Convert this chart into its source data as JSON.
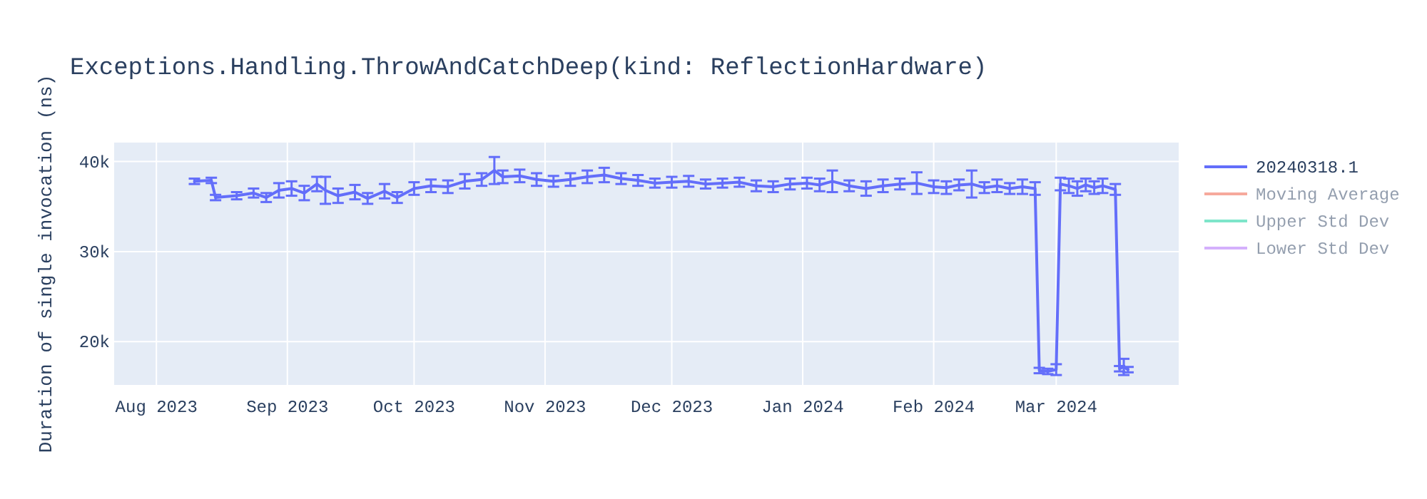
{
  "chart_data": {
    "type": "line",
    "title": "Exceptions.Handling.ThrowAndCatchDeep(kind: ReflectionHardware)",
    "ylabel": "Duration of single invocation (ns)",
    "x": [
      "2023-08-10",
      "2023-08-14",
      "2023-08-15",
      "2023-08-20",
      "2023-08-24",
      "2023-08-27",
      "2023-08-30",
      "2023-09-02",
      "2023-09-05",
      "2023-09-08",
      "2023-09-10",
      "2023-09-13",
      "2023-09-17",
      "2023-09-20",
      "2023-09-24",
      "2023-09-27",
      "2023-10-01",
      "2023-10-05",
      "2023-10-09",
      "2023-10-13",
      "2023-10-17",
      "2023-10-20",
      "2023-10-22",
      "2023-10-26",
      "2023-10-30",
      "2023-11-03",
      "2023-11-07",
      "2023-11-11",
      "2023-11-15",
      "2023-11-19",
      "2023-11-23",
      "2023-11-27",
      "2023-12-01",
      "2023-12-05",
      "2023-12-09",
      "2023-12-13",
      "2023-12-17",
      "2023-12-21",
      "2023-12-25",
      "2023-12-29",
      "2024-01-02",
      "2024-01-05",
      "2024-01-08",
      "2024-01-12",
      "2024-01-16",
      "2024-01-20",
      "2024-01-24",
      "2024-01-28",
      "2024-02-01",
      "2024-02-04",
      "2024-02-07",
      "2024-02-10",
      "2024-02-13",
      "2024-02-16",
      "2024-02-19",
      "2024-02-22",
      "2024-02-25",
      "2024-02-26",
      "2024-02-28",
      "2024-03-01",
      "2024-03-02",
      "2024-03-04",
      "2024-03-06",
      "2024-03-08",
      "2024-03-10",
      "2024-03-12",
      "2024-03-15",
      "2024-03-16",
      "2024-03-17",
      "2024-03-18"
    ],
    "series": [
      {
        "name": "20240318.1",
        "color": "#636efa",
        "values": [
          37800,
          37900,
          36000,
          36200,
          36500,
          36000,
          36800,
          37000,
          36500,
          37500,
          36800,
          36200,
          36600,
          35900,
          36700,
          36000,
          37000,
          37300,
          37200,
          37800,
          38000,
          39000,
          38300,
          38400,
          38000,
          37800,
          38000,
          38300,
          38500,
          38100,
          37900,
          37600,
          37700,
          37800,
          37500,
          37600,
          37700,
          37300,
          37200,
          37500,
          37600,
          37400,
          37800,
          37300,
          37000,
          37300,
          37500,
          37600,
          37200,
          37100,
          37400,
          37500,
          37100,
          37300,
          37000,
          37200,
          37000,
          16800,
          16700,
          16900,
          37500,
          37300,
          37000,
          37400,
          37100,
          37300,
          36900,
          17000,
          17200,
          16900
        ],
        "errors": [
          300,
          300,
          300,
          400,
          500,
          500,
          800,
          800,
          800,
          800,
          1500,
          800,
          800,
          600,
          800,
          600,
          700,
          700,
          700,
          800,
          700,
          1500,
          700,
          700,
          700,
          600,
          700,
          700,
          800,
          600,
          600,
          500,
          600,
          600,
          500,
          500,
          500,
          600,
          600,
          600,
          600,
          700,
          1200,
          600,
          800,
          700,
          600,
          1200,
          700,
          700,
          600,
          1500,
          600,
          700,
          600,
          800,
          700,
          300,
          300,
          600,
          700,
          800,
          800,
          700,
          700,
          800,
          600,
          300,
          900,
          300
        ]
      },
      {
        "name": "Moving Average",
        "color": "#ef553b",
        "values": [
          null,
          null,
          null,
          null,
          null,
          null,
          null,
          null,
          null,
          null,
          null,
          null,
          null,
          null,
          null,
          null,
          null,
          null,
          null,
          null,
          null,
          null,
          null,
          null,
          null,
          null,
          null,
          null,
          null,
          null,
          null,
          null,
          null,
          null,
          null,
          null,
          null,
          null,
          null,
          null,
          null,
          null,
          null,
          null,
          null,
          null,
          null,
          null,
          null,
          null,
          null,
          null,
          null,
          null,
          null,
          null,
          null,
          null,
          null,
          null,
          null,
          null,
          null,
          null,
          null,
          null,
          null,
          null,
          null,
          null
        ]
      },
      {
        "name": "Upper Std Dev",
        "color": "#00cc96",
        "values": [
          null,
          null,
          null,
          null,
          null,
          null,
          null,
          null,
          null,
          null,
          null,
          null,
          null,
          null,
          null,
          null,
          null,
          null,
          null,
          null,
          null,
          null,
          null,
          null,
          null,
          null,
          null,
          null,
          null,
          null,
          null,
          null,
          null,
          null,
          null,
          null,
          null,
          null,
          null,
          null,
          null,
          null,
          null,
          null,
          null,
          null,
          null,
          null,
          null,
          null,
          null,
          null,
          null,
          null,
          null,
          null,
          null,
          null,
          null,
          null,
          null,
          null,
          null,
          null,
          null,
          null,
          null,
          null,
          null,
          null
        ]
      },
      {
        "name": "Lower Std Dev",
        "color": "#ab63fa",
        "values": [
          null,
          null,
          null,
          null,
          null,
          null,
          null,
          null,
          null,
          null,
          null,
          null,
          null,
          null,
          null,
          null,
          null,
          null,
          null,
          null,
          null,
          null,
          null,
          null,
          null,
          null,
          null,
          null,
          null,
          null,
          null,
          null,
          null,
          null,
          null,
          null,
          null,
          null,
          null,
          null,
          null,
          null,
          null,
          null,
          null,
          null,
          null,
          null,
          null,
          null,
          null,
          null,
          null,
          null,
          null,
          null,
          null,
          null,
          null,
          null,
          null,
          null,
          null,
          null,
          null,
          null,
          null,
          null,
          null,
          null
        ]
      }
    ],
    "xlim": [
      "2023-07-22",
      "2024-03-30"
    ],
    "xticks": [
      {
        "value": "2023-08-01",
        "label": "Aug 2023"
      },
      {
        "value": "2023-09-01",
        "label": "Sep 2023"
      },
      {
        "value": "2023-10-01",
        "label": "Oct 2023"
      },
      {
        "value": "2023-11-01",
        "label": "Nov 2023"
      },
      {
        "value": "2023-12-01",
        "label": "Dec 2023"
      },
      {
        "value": "2024-01-01",
        "label": "Jan 2024"
      },
      {
        "value": "2024-02-01",
        "label": "Feb 2024"
      },
      {
        "value": "2024-03-01",
        "label": "Mar 2024"
      }
    ],
    "ylim": [
      15200,
      42100
    ],
    "yticks": [
      {
        "value": 20000,
        "label": "20k"
      },
      {
        "value": 30000,
        "label": "30k"
      },
      {
        "value": 40000,
        "label": "40k"
      }
    ],
    "grid": true,
    "legend": "right",
    "line_style": "solid",
    "marker": "none"
  }
}
